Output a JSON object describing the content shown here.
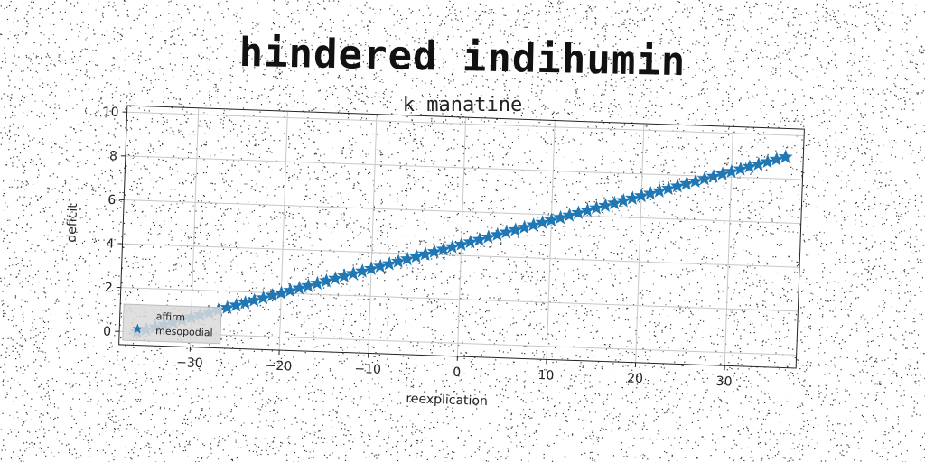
{
  "header": {
    "title": "hindered indihumin",
    "subtitle": "k manatine"
  },
  "chart_data": {
    "type": "scatter",
    "xlabel": "reexplication",
    "ylabel": "deficit",
    "xlim": [
      -38,
      38
    ],
    "ylim": [
      -0.6,
      10.3
    ],
    "xticks": [
      -30,
      -20,
      -10,
      0,
      10,
      20,
      30
    ],
    "yticks": [
      0,
      2,
      4,
      6,
      8,
      10
    ],
    "grid": true,
    "legend_position": "lower-left",
    "series": [
      {
        "name": "affirm",
        "marker": "none",
        "color": "#1f77b4",
        "x": [],
        "y": []
      },
      {
        "name": "mesopodial",
        "marker": "star",
        "color": "#1f77b4",
        "x_start": -36,
        "x_end": 36,
        "count": 73,
        "y_start": 0.0,
        "y_end": 9.0
      }
    ]
  }
}
